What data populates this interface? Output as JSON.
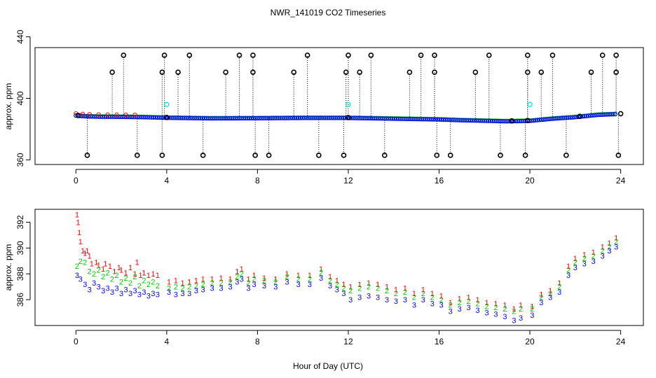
{
  "figure": {
    "title": "NWR_141019  CO2 Timeseries",
    "xlabel": "Hour of Day (UTC)"
  },
  "colors": {
    "axis": "#000000",
    "black_points": "#000000",
    "red_series": "#ff0000",
    "green_series": "#00cc00",
    "blue_series": "#0000ff",
    "cyan_points": "#00e5e5"
  },
  "chart_data": [
    {
      "type": "scatter",
      "panel": "top",
      "ylabel": "approx. ppm",
      "xlim": [
        -1.8,
        25
      ],
      "ylim": [
        357,
        433
      ],
      "x_ticks": [
        0,
        4,
        8,
        12,
        16,
        20,
        24
      ],
      "x_tick_labels": [
        "0",
        "4",
        "8",
        "12",
        "16",
        "20",
        "24"
      ],
      "y_ticks": [
        360,
        400,
        440
      ],
      "y_tick_labels": [
        "360",
        "400",
        "440"
      ],
      "baseline": [
        [
          0,
          389
        ],
        [
          0.5,
          388.5
        ],
        [
          1,
          388.3
        ],
        [
          2,
          388.2
        ],
        [
          3,
          388
        ],
        [
          4,
          387.6
        ],
        [
          6,
          387.2
        ],
        [
          8,
          387.3
        ],
        [
          10,
          387.5
        ],
        [
          12,
          387.5
        ],
        [
          14,
          387
        ],
        [
          16,
          386.5
        ],
        [
          17,
          386
        ],
        [
          19,
          385.3
        ],
        [
          20,
          385.6
        ],
        [
          21,
          387
        ],
        [
          22,
          388
        ],
        [
          23,
          389.5
        ],
        [
          23.8,
          390
        ]
      ],
      "red_early_x": [
        0,
        0.3,
        0.6,
        1.0,
        1.4,
        1.8,
        2.2,
        2.6
      ],
      "black_spikes_high": [
        2.1,
        3.9,
        5.0,
        7.2,
        7.8,
        10.2,
        12.0,
        13.0,
        15.2,
        15.8,
        18.2,
        19.9,
        21.0,
        23.2,
        23.8
      ],
      "black_spikes_mid": [
        1.6,
        3.8,
        4.5,
        6.6,
        7.8,
        9.6,
        11.9,
        12.5,
        14.7,
        15.8,
        17.6,
        19.9,
        20.5,
        22.7,
        23.8
      ],
      "black_spikes_low": [
        0.5,
        2.7,
        3.8,
        5.6,
        7.9,
        8.5,
        10.7,
        11.8,
        13.6,
        15.9,
        16.5,
        18.7,
        19.8,
        21.6,
        23.9
      ],
      "black_at_baseline": [
        0.1,
        4.0,
        12.0,
        19.2,
        19.9,
        22.2,
        24.0
      ],
      "cyan_points": [
        {
          "x": 4.0,
          "y": 396
        },
        {
          "x": 12.0,
          "y": 396
        },
        {
          "x": 20.0,
          "y": 396
        }
      ],
      "spike_values": {
        "high": 428,
        "mid": 417,
        "low": 363
      }
    },
    {
      "type": "scatter",
      "panel": "bottom",
      "ylabel": "approx. ppm",
      "xlim": [
        -1.8,
        25
      ],
      "ylim": [
        384.0,
        393.0
      ],
      "x_ticks": [
        0,
        4,
        8,
        12,
        16,
        20,
        24
      ],
      "x_tick_labels": [
        "0",
        "4",
        "8",
        "12",
        "16",
        "20",
        "24"
      ],
      "y_ticks": [
        386,
        388,
        390,
        392
      ],
      "y_tick_labels": [
        "386",
        "388",
        "390",
        "392"
      ],
      "series": [
        {
          "name": "1",
          "symbol": "1",
          "color": "red_series",
          "points": [
            [
              0.05,
              392.6
            ],
            [
              0.1,
              392.0
            ],
            [
              0.15,
              391.2
            ],
            [
              0.2,
              390.5
            ],
            [
              0.3,
              389.8
            ],
            [
              0.4,
              389.6
            ],
            [
              0.5,
              389.8
            ],
            [
              0.6,
              389.4
            ],
            [
              0.7,
              388.8
            ],
            [
              0.9,
              388.9
            ],
            [
              1.0,
              388.7
            ],
            [
              1.2,
              388.4
            ],
            [
              1.3,
              388.8
            ],
            [
              1.5,
              388.6
            ],
            [
              1.7,
              388.2
            ],
            [
              1.9,
              388.5
            ],
            [
              2.0,
              388.3
            ],
            [
              2.2,
              388.1
            ],
            [
              2.4,
              388.5
            ],
            [
              2.6,
              388.0
            ],
            [
              2.7,
              388.9
            ],
            [
              2.85,
              387.9
            ],
            [
              3.0,
              388.1
            ],
            [
              3.2,
              387.9
            ],
            [
              3.4,
              388.0
            ],
            [
              3.6,
              387.9
            ],
            [
              4.1,
              387.4
            ],
            [
              4.4,
              387.5
            ],
            [
              4.7,
              387.3
            ],
            [
              5.0,
              387.4
            ],
            [
              5.3,
              387.5
            ],
            [
              5.6,
              387.6
            ],
            [
              6.0,
              387.6
            ],
            [
              6.4,
              387.7
            ],
            [
              6.8,
              387.6
            ],
            [
              7.1,
              388.2
            ],
            [
              7.3,
              388.4
            ],
            [
              7.6,
              387.6
            ],
            [
              7.85,
              387.9
            ],
            [
              8.3,
              387.7
            ],
            [
              8.8,
              387.6
            ],
            [
              9.3,
              388.0
            ],
            [
              9.8,
              387.9
            ],
            [
              10.3,
              387.9
            ],
            [
              10.8,
              388.4
            ],
            [
              11.2,
              387.8
            ],
            [
              11.5,
              387.5
            ],
            [
              11.8,
              387.2
            ],
            [
              12.1,
              387.0
            ],
            [
              12.5,
              387.2
            ],
            [
              12.9,
              387.3
            ],
            [
              13.3,
              387.2
            ],
            [
              13.7,
              387.0
            ],
            [
              14.1,
              386.8
            ],
            [
              14.5,
              386.9
            ],
            [
              14.9,
              386.5
            ],
            [
              15.3,
              386.8
            ],
            [
              15.7,
              386.5
            ],
            [
              16.1,
              386.3
            ],
            [
              16.5,
              385.8
            ],
            [
              16.9,
              386.1
            ],
            [
              17.3,
              386.2
            ],
            [
              17.7,
              386.0
            ],
            [
              18.1,
              385.8
            ],
            [
              18.5,
              385.7
            ],
            [
              18.9,
              385.6
            ],
            [
              19.3,
              385.3
            ],
            [
              19.6,
              385.6
            ],
            [
              20.1,
              385.5
            ],
            [
              20.5,
              386.4
            ],
            [
              20.9,
              386.7
            ],
            [
              21.3,
              387.3
            ],
            [
              21.7,
              388.6
            ],
            [
              22.0,
              389.2
            ],
            [
              22.4,
              389.5
            ],
            [
              22.8,
              389.7
            ],
            [
              23.2,
              390.1
            ],
            [
              23.5,
              390.4
            ],
            [
              23.8,
              390.8
            ]
          ]
        },
        {
          "name": "2",
          "symbol": "2",
          "color": "green_series",
          "points": [
            [
              0.05,
              388.6
            ],
            [
              0.2,
              389.0
            ],
            [
              0.4,
              388.9
            ],
            [
              0.6,
              388.2
            ],
            [
              0.8,
              388.0
            ],
            [
              1.0,
              388.3
            ],
            [
              1.2,
              387.8
            ],
            [
              1.4,
              388.1
            ],
            [
              1.6,
              387.6
            ],
            [
              1.8,
              387.9
            ],
            [
              2.0,
              387.4
            ],
            [
              2.2,
              387.7
            ],
            [
              2.4,
              387.3
            ],
            [
              2.6,
              387.8
            ],
            [
              2.8,
              387.1
            ],
            [
              3.0,
              387.5
            ],
            [
              3.2,
              387.2
            ],
            [
              3.4,
              387.4
            ],
            [
              3.6,
              387.1
            ],
            [
              4.1,
              386.9
            ],
            [
              4.4,
              387.0
            ],
            [
              4.7,
              386.9
            ],
            [
              5.0,
              387.0
            ],
            [
              5.3,
              387.1
            ],
            [
              5.6,
              387.2
            ],
            [
              6.0,
              387.3
            ],
            [
              6.4,
              387.3
            ],
            [
              6.8,
              387.4
            ],
            [
              7.1,
              387.8
            ],
            [
              7.3,
              388.0
            ],
            [
              7.6,
              387.3
            ],
            [
              7.85,
              387.6
            ],
            [
              8.3,
              387.5
            ],
            [
              8.8,
              387.4
            ],
            [
              9.3,
              387.8
            ],
            [
              9.8,
              387.6
            ],
            [
              10.3,
              387.6
            ],
            [
              10.8,
              388.1
            ],
            [
              11.2,
              387.5
            ],
            [
              11.5,
              387.2
            ],
            [
              11.8,
              386.9
            ],
            [
              12.1,
              386.7
            ],
            [
              12.5,
              386.9
            ],
            [
              12.9,
              387.0
            ],
            [
              13.3,
              386.9
            ],
            [
              13.7,
              386.7
            ],
            [
              14.1,
              386.5
            ],
            [
              14.5,
              386.6
            ],
            [
              14.9,
              386.2
            ],
            [
              15.3,
              386.5
            ],
            [
              15.7,
              386.2
            ],
            [
              16.1,
              386.0
            ],
            [
              16.5,
              385.6
            ],
            [
              16.9,
              385.8
            ],
            [
              17.3,
              385.9
            ],
            [
              17.7,
              385.7
            ],
            [
              18.1,
              385.5
            ],
            [
              18.5,
              385.4
            ],
            [
              18.9,
              385.3
            ],
            [
              19.3,
              385.1
            ],
            [
              19.6,
              385.3
            ],
            [
              20.1,
              385.3
            ],
            [
              20.5,
              386.2
            ],
            [
              20.9,
              386.5
            ],
            [
              21.3,
              387.0
            ],
            [
              21.7,
              388.3
            ],
            [
              22.0,
              388.9
            ],
            [
              22.4,
              389.2
            ],
            [
              22.8,
              389.4
            ],
            [
              23.2,
              389.8
            ],
            [
              23.5,
              390.1
            ],
            [
              23.8,
              390.5
            ]
          ]
        },
        {
          "name": "3",
          "symbol": "3",
          "color": "blue_series",
          "points": [
            [
              0.05,
              387.9
            ],
            [
              0.2,
              387.6
            ],
            [
              0.4,
              387.2
            ],
            [
              0.6,
              386.8
            ],
            [
              0.8,
              387.3
            ],
            [
              1.0,
              387.0
            ],
            [
              1.2,
              386.7
            ],
            [
              1.4,
              386.9
            ],
            [
              1.6,
              386.6
            ],
            [
              1.8,
              386.9
            ],
            [
              2.0,
              386.5
            ],
            [
              2.2,
              386.8
            ],
            [
              2.4,
              386.5
            ],
            [
              2.6,
              386.7
            ],
            [
              2.8,
              386.4
            ],
            [
              3.0,
              386.6
            ],
            [
              3.2,
              386.3
            ],
            [
              3.4,
              386.5
            ],
            [
              3.6,
              386.4
            ],
            [
              4.1,
              386.6
            ],
            [
              4.4,
              386.4
            ],
            [
              4.7,
              386.5
            ],
            [
              5.0,
              386.5
            ],
            [
              5.3,
              386.7
            ],
            [
              5.6,
              386.8
            ],
            [
              6.0,
              386.9
            ],
            [
              6.4,
              386.9
            ],
            [
              6.8,
              387.0
            ],
            [
              7.1,
              387.4
            ],
            [
              7.3,
              387.6
            ],
            [
              7.6,
              386.9
            ],
            [
              7.85,
              387.2
            ],
            [
              8.3,
              387.1
            ],
            [
              8.8,
              387.0
            ],
            [
              9.3,
              387.4
            ],
            [
              9.8,
              387.2
            ],
            [
              10.3,
              387.2
            ],
            [
              10.8,
              387.7
            ],
            [
              11.2,
              387.1
            ],
            [
              11.5,
              386.8
            ],
            [
              11.8,
              386.5
            ],
            [
              12.1,
              386.0
            ],
            [
              12.5,
              386.2
            ],
            [
              12.9,
              386.3
            ],
            [
              13.3,
              386.2
            ],
            [
              13.7,
              386.0
            ],
            [
              14.1,
              385.9
            ],
            [
              14.5,
              386.0
            ],
            [
              14.9,
              385.6
            ],
            [
              15.3,
              386.0
            ],
            [
              15.7,
              385.7
            ],
            [
              16.1,
              385.6
            ],
            [
              16.5,
              385.1
            ],
            [
              16.9,
              385.3
            ],
            [
              17.3,
              385.4
            ],
            [
              17.7,
              385.2
            ],
            [
              18.1,
              385.0
            ],
            [
              18.5,
              384.9
            ],
            [
              18.9,
              384.7
            ],
            [
              19.3,
              384.4
            ],
            [
              19.6,
              384.6
            ],
            [
              20.1,
              384.8
            ],
            [
              20.5,
              385.8
            ],
            [
              20.9,
              386.2
            ],
            [
              21.3,
              386.6
            ],
            [
              21.7,
              387.9
            ],
            [
              22.0,
              388.5
            ],
            [
              22.4,
              388.8
            ],
            [
              22.8,
              389.0
            ],
            [
              23.2,
              389.4
            ],
            [
              23.5,
              389.8
            ],
            [
              23.8,
              390.1
            ]
          ]
        }
      ]
    }
  ]
}
